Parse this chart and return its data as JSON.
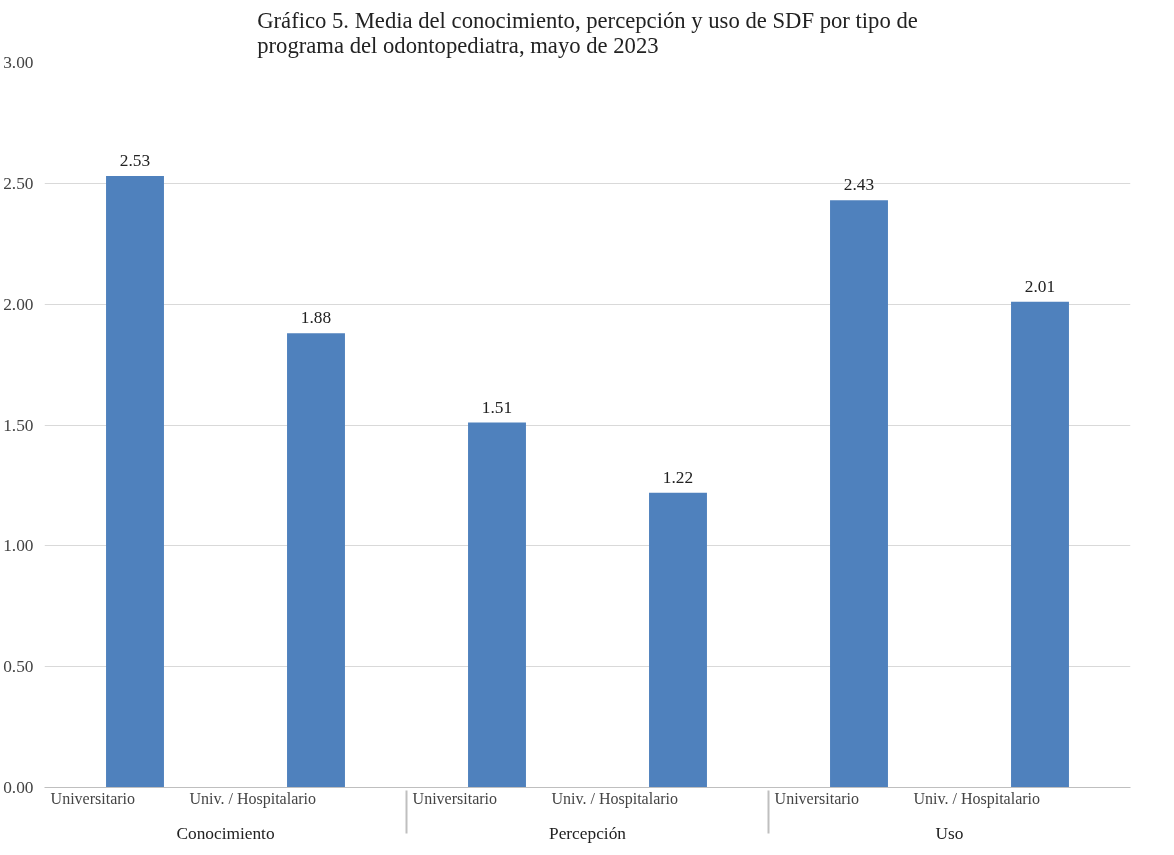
{
  "chart_data": {
    "type": "bar",
    "title": "Gráfico 5. Media del conocimiento, percepción y uso de SDF por tipo de programa del odontopediatra, mayo de 2023",
    "categories": [
      [
        "Conocimiento",
        "Universitario"
      ],
      [
        null,
        "Univ. / Hospitalario"
      ],
      [
        "Percepción",
        "Universitario"
      ],
      [
        null,
        "Univ. / Hospitalario"
      ],
      [
        "Uso",
        "Universitario"
      ],
      [
        null,
        "Univ. / Hospitalario"
      ]
    ],
    "values": [
      2.53,
      1.88,
      1.51,
      1.22,
      2.43,
      2.01
    ],
    "color": "#4f81bd",
    "ylim": [
      0,
      3
    ],
    "yticks": [
      {
        "value": 0,
        "label": "0.00"
      },
      {
        "value": 0.5,
        "label": "0.50"
      },
      {
        "value": 1,
        "label": "1.00"
      },
      {
        "value": 1.5,
        "label": "1.50"
      },
      {
        "value": 2,
        "label": "2.00"
      },
      {
        "value": 2.5,
        "label": "2.50"
      },
      {
        "value": 3,
        "label": "3.00"
      }
    ],
    "grid": "y",
    "data_labels": true
  }
}
